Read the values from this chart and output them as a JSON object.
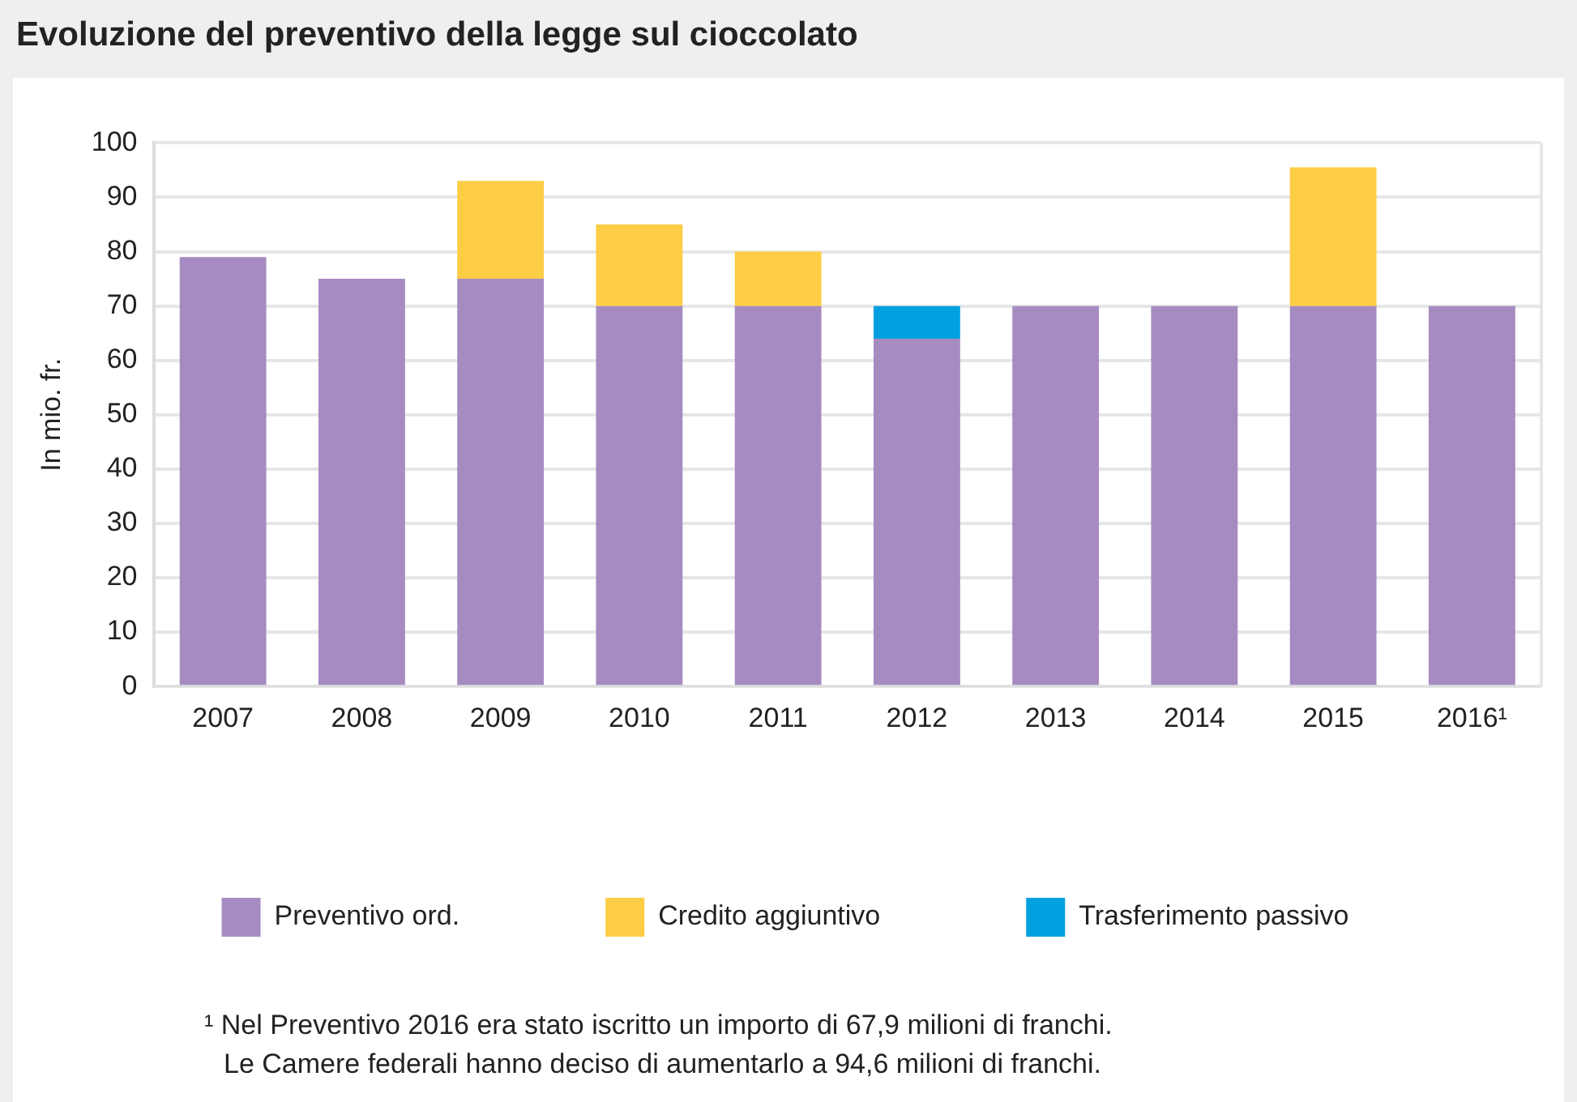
{
  "chart_data": {
    "type": "bar",
    "title": "Evoluzione del preventivo della legge sul cioccolato",
    "ylabel": "In mio. fr.",
    "categories": [
      "2007",
      "2008",
      "2009",
      "2010",
      "2011",
      "2012",
      "2013",
      "2014",
      "2015",
      "2016¹"
    ],
    "series": [
      {
        "name": "Preventivo ord.",
        "color": "#a68bc1",
        "values": [
          79,
          75,
          75,
          70,
          70,
          64,
          70,
          70,
          70,
          70
        ]
      },
      {
        "name": "Credito aggiuntivo",
        "color": "#fdcd45",
        "values": [
          null,
          null,
          18,
          15,
          10,
          null,
          null,
          null,
          25.5,
          null
        ]
      },
      {
        "name": "Trasferimento passivo",
        "color": "#00a0e1",
        "values": [
          null,
          null,
          null,
          null,
          null,
          6,
          null,
          null,
          null,
          null
        ]
      }
    ],
    "stacked": true,
    "ylim": [
      0,
      100
    ],
    "yticks": [
      0,
      10,
      20,
      30,
      40,
      50,
      60,
      70,
      80,
      90,
      100
    ],
    "grid": "y",
    "legend": "bottom",
    "annotations": [
      "¹ Nel Preventivo 2016 era stato iscritto un importo di 67,9 milioni di franchi.",
      "Le Camere federali hanno deciso di aumentarlo a 94,6 milioni di franchi."
    ]
  }
}
